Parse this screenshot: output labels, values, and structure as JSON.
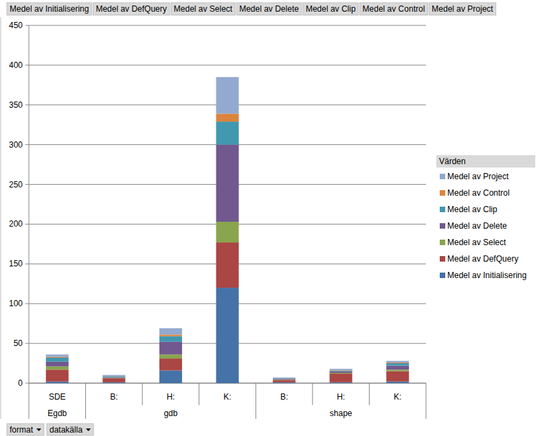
{
  "chart_data": {
    "type": "bar",
    "stacked": true,
    "grid": true,
    "legend": "right",
    "legend_title": "Värden",
    "categories": [
      "SDE",
      "B:",
      "H:",
      "K:",
      "B:",
      "H:",
      "K:"
    ],
    "category_groups": [
      {
        "label": "Egdb",
        "count": 1
      },
      {
        "label": "gdb",
        "count": 3
      },
      {
        "label": "shape",
        "count": 3
      }
    ],
    "row_fields": [
      "format",
      "datakälla"
    ],
    "ylim": [
      0,
      450
    ],
    "yticks": [
      0,
      50,
      100,
      150,
      200,
      250,
      300,
      350,
      400,
      450
    ],
    "series": [
      {
        "name": "Medel av Initialisering",
        "color": "#4572a7",
        "values": [
          2,
          1,
          16,
          120,
          1,
          1,
          2
        ]
      },
      {
        "name": "Medel av DefQuery",
        "color": "#aa4643",
        "values": [
          15,
          5,
          15,
          57,
          3,
          11,
          13
        ]
      },
      {
        "name": "Medel av Select",
        "color": "#89a54e",
        "values": [
          4,
          0.5,
          5,
          26,
          0.5,
          1,
          2
        ]
      },
      {
        "name": "Medel av Delete",
        "color": "#71588f",
        "values": [
          6,
          1,
          16,
          97,
          1,
          2,
          5
        ]
      },
      {
        "name": "Medel av Clip",
        "color": "#4198af",
        "values": [
          5,
          1,
          7,
          29,
          0.5,
          1,
          3
        ]
      },
      {
        "name": "Medel av Control",
        "color": "#db843d",
        "values": [
          1,
          0.3,
          2,
          10,
          0.2,
          0.5,
          1
        ]
      },
      {
        "name": "Medel av Project",
        "color": "#93a9cf",
        "values": [
          3,
          1.5,
          8,
          46,
          1,
          1.5,
          2
        ]
      }
    ]
  }
}
